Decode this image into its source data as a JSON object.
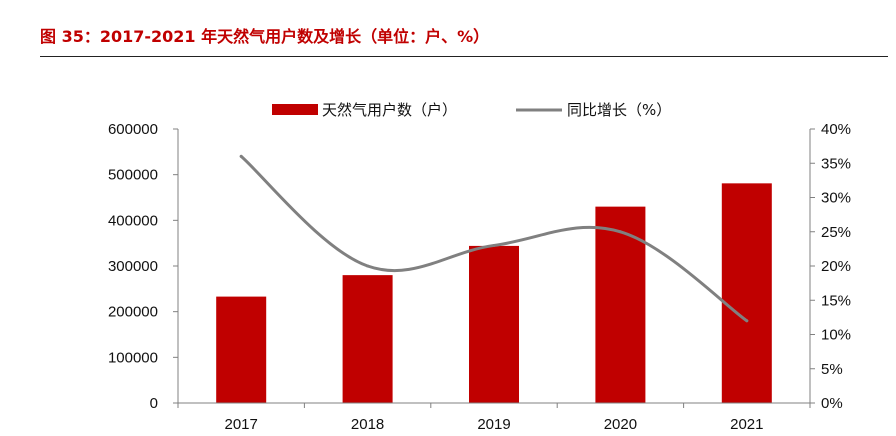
{
  "figure_title": "图 35：2017-2021 年天然气用户数及增长（单位：户、%）",
  "chart_data": {
    "type": "bar",
    "categories": [
      "2017",
      "2018",
      "2019",
      "2020",
      "2021"
    ],
    "series": [
      {
        "name": "天然气用户数（户）",
        "type": "bar",
        "axis": "left",
        "color": "#c00000",
        "values": [
          233000,
          280000,
          344000,
          430000,
          481000
        ]
      },
      {
        "name": "同比增长（%）",
        "type": "line",
        "axis": "right",
        "color": "#808080",
        "values": [
          36,
          20,
          23,
          25,
          12
        ]
      }
    ],
    "y_left": {
      "min": 0,
      "max": 600000,
      "ticks": [
        "0",
        "100000",
        "200000",
        "300000",
        "400000",
        "500000",
        "600000"
      ]
    },
    "y_right": {
      "min": 0,
      "max": 40,
      "ticks": [
        "0%",
        "5%",
        "10%",
        "15%",
        "20%",
        "25%",
        "30%",
        "35%",
        "40%"
      ]
    },
    "legend_position": "top",
    "grid": false
  }
}
